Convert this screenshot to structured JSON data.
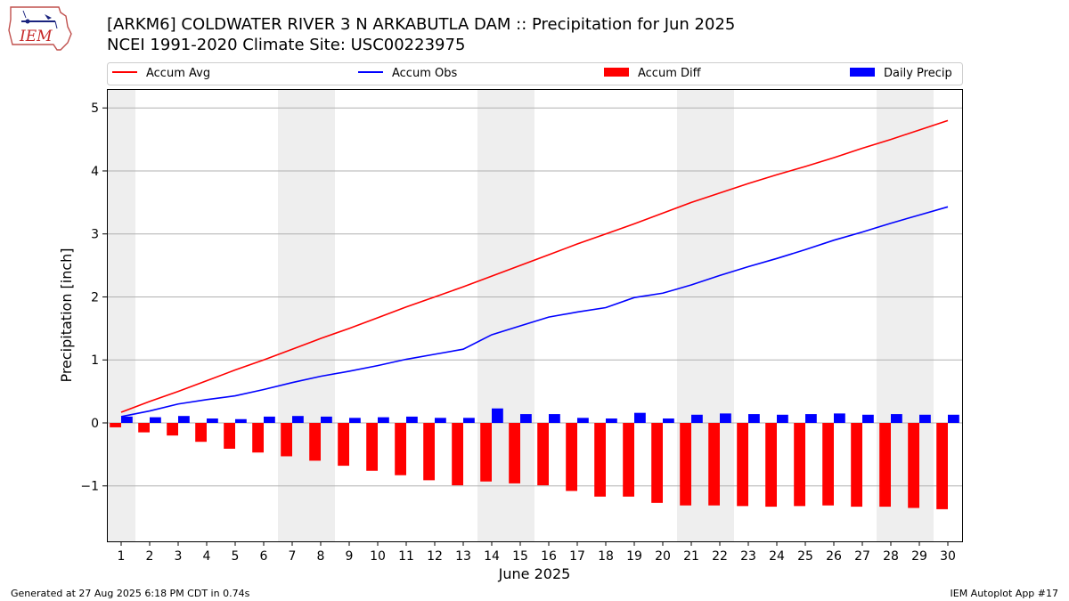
{
  "header": {
    "title_line1": "[ARKM6] COLDWATER RIVER 3 N ARKABUTLA DAM :: Precipitation for Jun 2025",
    "title_line2": "NCEI 1991-2020 Climate Site: USC00223975",
    "logo_text": "IEM"
  },
  "footer": {
    "generated": "Generated at 27 Aug 2025 6:18 PM CDT in 0.74s",
    "app": "IEM Autoplot App #17"
  },
  "colors": {
    "avg": "#ff0000",
    "obs": "#0000ff",
    "diff": "#ff0000",
    "daily": "#0000ff",
    "weekend_shade": "#eeeeee",
    "grid": "#b0b0b0"
  },
  "chart_data": {
    "type": "bar",
    "xlabel": "June 2025",
    "ylabel": "Precipitation [inch]",
    "ylim": [
      -1.88,
      5.3
    ],
    "yticks": [
      -1,
      0,
      1,
      2,
      3,
      4,
      5
    ],
    "ytick_labels": [
      "−1",
      "0",
      "1",
      "2",
      "3",
      "4",
      "5"
    ],
    "grid": "horizontal",
    "legend_placement": "top",
    "x": [
      1,
      2,
      3,
      4,
      5,
      6,
      7,
      8,
      9,
      10,
      11,
      12,
      13,
      14,
      15,
      16,
      17,
      18,
      19,
      20,
      21,
      22,
      23,
      24,
      25,
      26,
      27,
      28,
      29,
      30
    ],
    "shaded_days": [
      1,
      7,
      8,
      14,
      15,
      21,
      22,
      28,
      29
    ],
    "series": [
      {
        "name": "Accum Avg",
        "kind": "line",
        "values": [
          0.17,
          0.34,
          0.5,
          0.67,
          0.84,
          1.0,
          1.17,
          1.34,
          1.5,
          1.67,
          1.84,
          2.0,
          2.16,
          2.33,
          2.5,
          2.67,
          2.84,
          3.0,
          3.16,
          3.33,
          3.5,
          3.65,
          3.8,
          3.94,
          4.07,
          4.21,
          4.36,
          4.5,
          4.65,
          4.8
        ]
      },
      {
        "name": "Accum Obs",
        "kind": "line",
        "values": [
          0.1,
          0.19,
          0.3,
          0.37,
          0.43,
          0.53,
          0.64,
          0.74,
          0.82,
          0.91,
          1.01,
          1.09,
          1.17,
          1.4,
          1.54,
          1.68,
          1.76,
          1.83,
          1.99,
          2.06,
          2.19,
          2.34,
          2.48,
          2.61,
          2.75,
          2.9,
          3.03,
          3.17,
          3.3,
          3.43
        ]
      },
      {
        "name": "Accum Diff",
        "kind": "bar",
        "values": [
          -0.07,
          -0.15,
          -0.2,
          -0.3,
          -0.41,
          -0.47,
          -0.53,
          -0.6,
          -0.68,
          -0.76,
          -0.83,
          -0.91,
          -0.99,
          -0.93,
          -0.96,
          -0.99,
          -1.08,
          -1.17,
          -1.17,
          -1.27,
          -1.31,
          -1.31,
          -1.32,
          -1.33,
          -1.32,
          -1.31,
          -1.33,
          -1.33,
          -1.35,
          -1.37
        ]
      },
      {
        "name": "Daily Precip",
        "kind": "bar",
        "values": [
          0.1,
          0.09,
          0.11,
          0.07,
          0.06,
          0.1,
          0.11,
          0.1,
          0.08,
          0.09,
          0.1,
          0.08,
          0.08,
          0.23,
          0.14,
          0.14,
          0.08,
          0.07,
          0.16,
          0.07,
          0.13,
          0.15,
          0.14,
          0.13,
          0.14,
          0.15,
          0.13,
          0.14,
          0.13,
          0.13
        ]
      }
    ]
  }
}
